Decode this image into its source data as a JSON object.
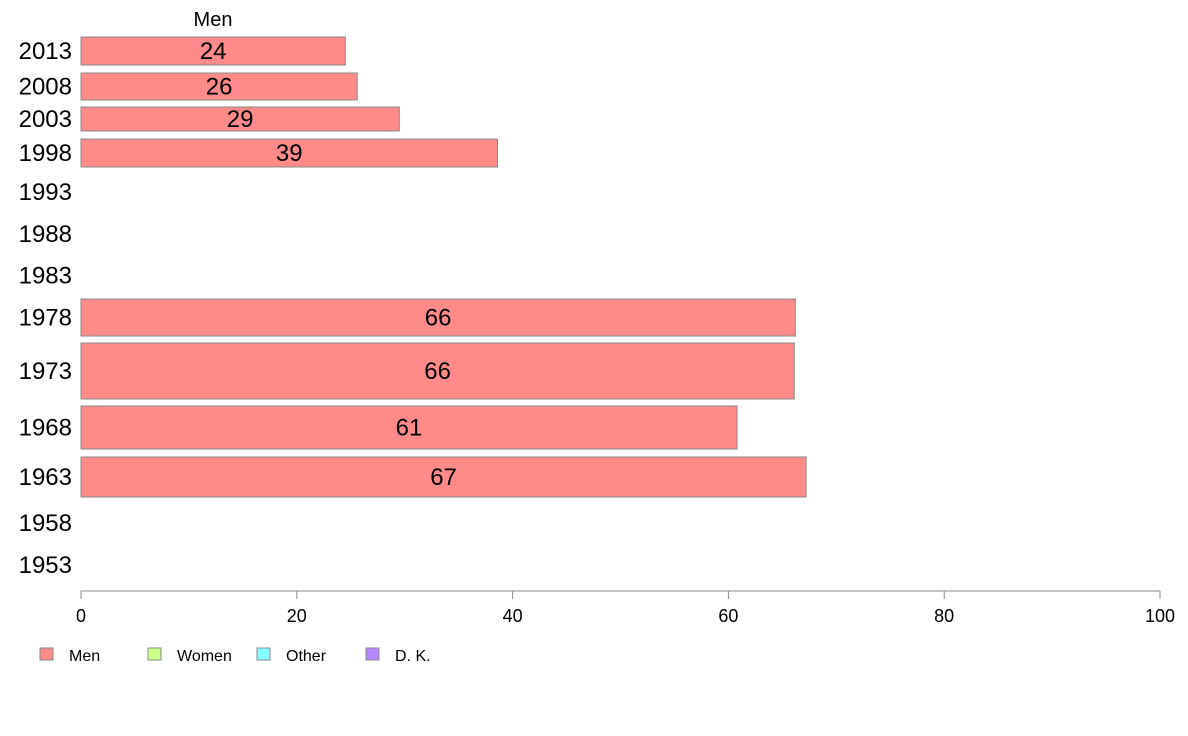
{
  "chart_data": {
    "type": "bar",
    "orientation": "horizontal",
    "categories": [
      "2013",
      "2008",
      "2003",
      "1998",
      "1993",
      "1988",
      "1983",
      "1978",
      "1973",
      "1968",
      "1963",
      "1958",
      "1953"
    ],
    "series": [
      {
        "name": "Men",
        "color": "#ff8a8a",
        "values": [
          24.5,
          25.6,
          29.5,
          38.6,
          null,
          null,
          null,
          66.2,
          66.1,
          60.8,
          67.2,
          null,
          null
        ]
      },
      {
        "name": "Women",
        "color": "#ccff88",
        "values": [
          null,
          null,
          null,
          null,
          null,
          null,
          null,
          null,
          null,
          null,
          null,
          null,
          null
        ]
      },
      {
        "name": "Other",
        "color": "#88ffff",
        "values": [
          null,
          null,
          null,
          null,
          null,
          null,
          null,
          null,
          null,
          null,
          null,
          null,
          null
        ]
      },
      {
        "name": "D. K.",
        "color": "#b388ff",
        "values": [
          null,
          null,
          null,
          null,
          null,
          null,
          null,
          null,
          null,
          null,
          null,
          null,
          null
        ]
      }
    ],
    "data_labels": [
      "24",
      "26",
      "29",
      "39",
      "",
      "",
      "",
      "66",
      "66",
      "61",
      "67",
      "",
      ""
    ],
    "series_heading": "Men",
    "xlim": [
      0,
      100
    ],
    "xticks": [
      0,
      20,
      40,
      60,
      80,
      100
    ],
    "grid": false,
    "legend_position": "bottom-left",
    "title": "",
    "xlabel": "",
    "ylabel": ""
  }
}
